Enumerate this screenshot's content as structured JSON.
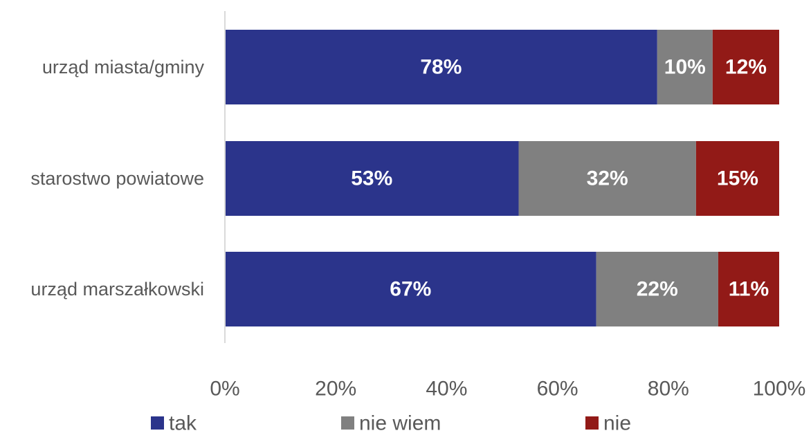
{
  "chart_data": {
    "type": "bar",
    "orientation": "horizontal",
    "stacked": "percent",
    "categories": [
      "urząd miasta/gminy",
      "starostwo powiatowe",
      "urząd marszałkowski"
    ],
    "series": [
      {
        "name": "tak",
        "values": [
          78,
          53,
          67
        ],
        "labels": [
          "78%",
          "53%",
          "67%"
        ],
        "color": "#2B348B"
      },
      {
        "name": "nie wiem",
        "values": [
          10,
          32,
          22
        ],
        "labels": [
          "10%",
          "32%",
          "22%"
        ],
        "color": "#808080"
      },
      {
        "name": "nie",
        "values": [
          12,
          15,
          11
        ],
        "labels": [
          "12%",
          "15%",
          "11%"
        ],
        "color": "#921A17"
      }
    ],
    "xlim": [
      0,
      100
    ],
    "x_ticks": [
      "0%",
      "20%",
      "40%",
      "60%",
      "80%",
      "100%"
    ],
    "grid": false,
    "legend_position": "bottom"
  }
}
